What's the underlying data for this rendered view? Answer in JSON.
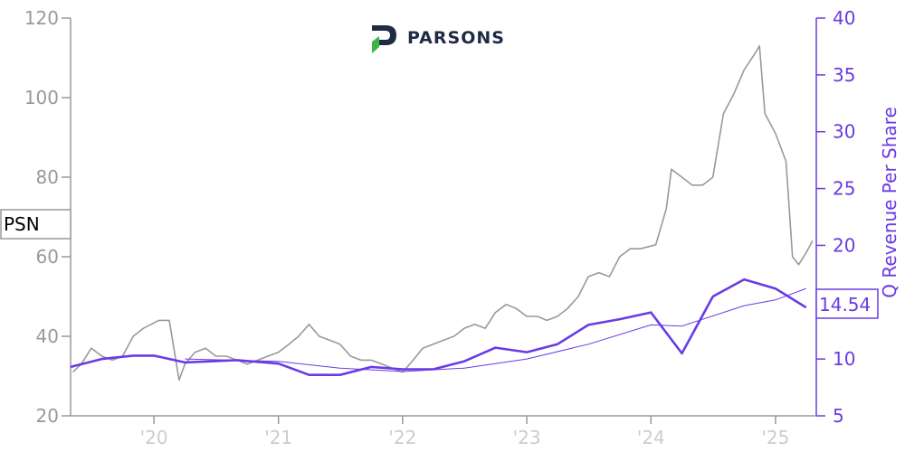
{
  "logo": {
    "text": "PARSONS"
  },
  "chart_data": {
    "type": "line",
    "ticker": "PSN",
    "left_axis": {
      "ylim": [
        20,
        120
      ],
      "ticks": [
        20,
        40,
        60,
        80,
        100,
        120
      ],
      "label": ""
    },
    "right_axis": {
      "ylim": [
        5,
        40
      ],
      "ticks": [
        5,
        10,
        15,
        20,
        25,
        30,
        35,
        40
      ],
      "label": "Q Revenue Per Share"
    },
    "x_axis": {
      "xlim": [
        "2019-05-01",
        "2025-05-01"
      ],
      "ticks": [
        {
          "x": "2020-01-01",
          "label": "'20"
        },
        {
          "x": "2021-01-01",
          "label": "'21"
        },
        {
          "x": "2022-01-01",
          "label": "'22"
        },
        {
          "x": "2023-01-01",
          "label": "'23"
        },
        {
          "x": "2024-01-01",
          "label": "'24"
        },
        {
          "x": "2025-01-01",
          "label": "'25"
        }
      ]
    },
    "last_value_label": "14.54",
    "series": [
      {
        "name": "PSN",
        "axis": "left",
        "color": "#999999",
        "points": [
          [
            "2019-05-08",
            31
          ],
          [
            "2019-06-01",
            33
          ],
          [
            "2019-07-01",
            37
          ],
          [
            "2019-08-01",
            35
          ],
          [
            "2019-09-01",
            34
          ],
          [
            "2019-10-01",
            35
          ],
          [
            "2019-11-01",
            40
          ],
          [
            "2019-12-01",
            42
          ],
          [
            "2020-01-15",
            44
          ],
          [
            "2020-02-15",
            44
          ],
          [
            "2020-03-15",
            29
          ],
          [
            "2020-04-01",
            33
          ],
          [
            "2020-05-01",
            36
          ],
          [
            "2020-06-01",
            37
          ],
          [
            "2020-07-01",
            35
          ],
          [
            "2020-08-01",
            35
          ],
          [
            "2020-09-01",
            34
          ],
          [
            "2020-10-01",
            33
          ],
          [
            "2020-11-01",
            34
          ],
          [
            "2020-12-01",
            35
          ],
          [
            "2021-01-01",
            36
          ],
          [
            "2021-02-01",
            38
          ],
          [
            "2021-03-01",
            40
          ],
          [
            "2021-04-01",
            43
          ],
          [
            "2021-05-01",
            40
          ],
          [
            "2021-06-01",
            39
          ],
          [
            "2021-07-01",
            38
          ],
          [
            "2021-08-01",
            35
          ],
          [
            "2021-09-01",
            34
          ],
          [
            "2021-10-01",
            34
          ],
          [
            "2021-11-01",
            33
          ],
          [
            "2021-12-01",
            32
          ],
          [
            "2022-01-01",
            31
          ],
          [
            "2022-02-01",
            34
          ],
          [
            "2022-03-01",
            37
          ],
          [
            "2022-04-01",
            38
          ],
          [
            "2022-05-01",
            39
          ],
          [
            "2022-06-01",
            40
          ],
          [
            "2022-07-01",
            42
          ],
          [
            "2022-08-01",
            43
          ],
          [
            "2022-09-01",
            42
          ],
          [
            "2022-10-01",
            46
          ],
          [
            "2022-11-01",
            48
          ],
          [
            "2022-12-01",
            47
          ],
          [
            "2023-01-01",
            45
          ],
          [
            "2023-02-01",
            45
          ],
          [
            "2023-03-01",
            44
          ],
          [
            "2023-04-01",
            45
          ],
          [
            "2023-05-01",
            47
          ],
          [
            "2023-06-01",
            50
          ],
          [
            "2023-07-01",
            55
          ],
          [
            "2023-08-01",
            56
          ],
          [
            "2023-09-01",
            55
          ],
          [
            "2023-10-01",
            60
          ],
          [
            "2023-11-01",
            62
          ],
          [
            "2023-12-01",
            62
          ],
          [
            "2024-01-15",
            63
          ],
          [
            "2024-02-15",
            72
          ],
          [
            "2024-03-01",
            82
          ],
          [
            "2024-04-01",
            80
          ],
          [
            "2024-05-01",
            78
          ],
          [
            "2024-06-01",
            78
          ],
          [
            "2024-07-01",
            80
          ],
          [
            "2024-08-01",
            96
          ],
          [
            "2024-09-01",
            101
          ],
          [
            "2024-10-01",
            107
          ],
          [
            "2024-11-01",
            111
          ],
          [
            "2024-11-15",
            113
          ],
          [
            "2024-12-01",
            96
          ],
          [
            "2025-01-01",
            91
          ],
          [
            "2025-02-01",
            84
          ],
          [
            "2025-02-20",
            60
          ],
          [
            "2025-03-10",
            58
          ],
          [
            "2025-04-01",
            61
          ],
          [
            "2025-04-20",
            64
          ]
        ]
      },
      {
        "name": "Q Revenue Per Share",
        "axis": "right",
        "color": "#6a3be4",
        "points": [
          [
            "2019-05-01",
            9.3
          ],
          [
            "2019-08-01",
            10.0
          ],
          [
            "2019-11-01",
            10.3
          ],
          [
            "2020-01-01",
            10.3
          ],
          [
            "2020-04-01",
            9.7
          ],
          [
            "2020-09-01",
            9.9
          ],
          [
            "2021-01-01",
            9.6
          ],
          [
            "2021-04-01",
            8.6
          ],
          [
            "2021-07-01",
            8.6
          ],
          [
            "2021-10-01",
            9.3
          ],
          [
            "2022-01-01",
            9.1
          ],
          [
            "2022-04-01",
            9.1
          ],
          [
            "2022-07-01",
            9.8
          ],
          [
            "2022-10-01",
            11.0
          ],
          [
            "2023-01-01",
            10.6
          ],
          [
            "2023-04-01",
            11.3
          ],
          [
            "2023-07-01",
            13.0
          ],
          [
            "2023-10-01",
            13.5
          ],
          [
            "2024-01-01",
            14.1
          ],
          [
            "2024-04-01",
            10.5
          ],
          [
            "2024-07-01",
            15.5
          ],
          [
            "2024-10-01",
            17.0
          ],
          [
            "2025-01-01",
            16.2
          ],
          [
            "2025-04-01",
            14.54
          ]
        ]
      },
      {
        "name": "Q Revenue Per Share trend",
        "axis": "right",
        "color": "#6a3be4",
        "points": [
          [
            "2020-04-01",
            10.0
          ],
          [
            "2021-01-01",
            9.8
          ],
          [
            "2021-07-01",
            9.2
          ],
          [
            "2022-01-01",
            8.9
          ],
          [
            "2022-07-01",
            9.2
          ],
          [
            "2023-01-01",
            10.0
          ],
          [
            "2023-07-01",
            11.3
          ],
          [
            "2024-01-01",
            13.0
          ],
          [
            "2024-04-01",
            12.9
          ],
          [
            "2024-10-01",
            14.7
          ],
          [
            "2025-01-01",
            15.2
          ],
          [
            "2025-04-01",
            16.2
          ]
        ]
      }
    ]
  }
}
